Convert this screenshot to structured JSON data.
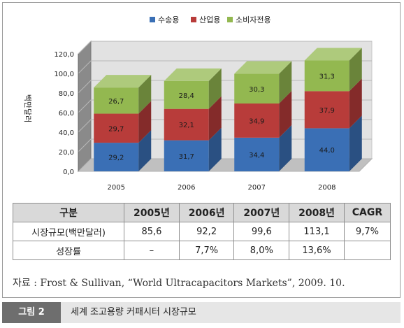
{
  "chart_data": {
    "type": "bar",
    "stacked": true,
    "categories": [
      "2005",
      "2006",
      "2007",
      "2008"
    ],
    "series": [
      {
        "name": "수송용",
        "values": [
          29.2,
          31.7,
          34.4,
          44.0
        ],
        "labels": [
          "29,2",
          "31,7",
          "34,4",
          "44,0"
        ],
        "color": "#3a6fb5"
      },
      {
        "name": "산업용",
        "values": [
          29.7,
          32.1,
          34.9,
          37.9
        ],
        "labels": [
          "29,7",
          "32,1",
          "34,9",
          "37,9"
        ],
        "color": "#b83c3a"
      },
      {
        "name": "소비자전용",
        "values": [
          26.7,
          28.4,
          30.3,
          31.3
        ],
        "labels": [
          "26,7",
          "28,4",
          "30,3",
          "31,3"
        ],
        "color": "#93b850"
      }
    ],
    "ylabel": "백만달러",
    "ylim": [
      0,
      120
    ],
    "yticks": [
      0,
      20,
      40,
      60,
      80,
      100,
      120
    ],
    "ytick_labels": [
      "0,0",
      "20,0",
      "40,0",
      "60,0",
      "80,0",
      "100,0",
      "120,0"
    ],
    "grid": true,
    "legend_position": "top-center"
  },
  "table": {
    "headers": [
      "구분",
      "2005년",
      "2006년",
      "2007년",
      "2008년",
      "CAGR"
    ],
    "rows": [
      [
        "시장규모(백만달러)",
        "85,6",
        "92,2",
        "99,6",
        "113,1",
        "9,7%"
      ],
      [
        "성장률",
        "–",
        "7,7%",
        "8,0%",
        "13,6%",
        ""
      ]
    ]
  },
  "source": "자료 : Frost & Sullivan, “World Ultracapacitors Markets”, 2009. 10.",
  "caption": {
    "label": "그림 2",
    "text": "세계 조고용량 커패시터 시장규모"
  }
}
